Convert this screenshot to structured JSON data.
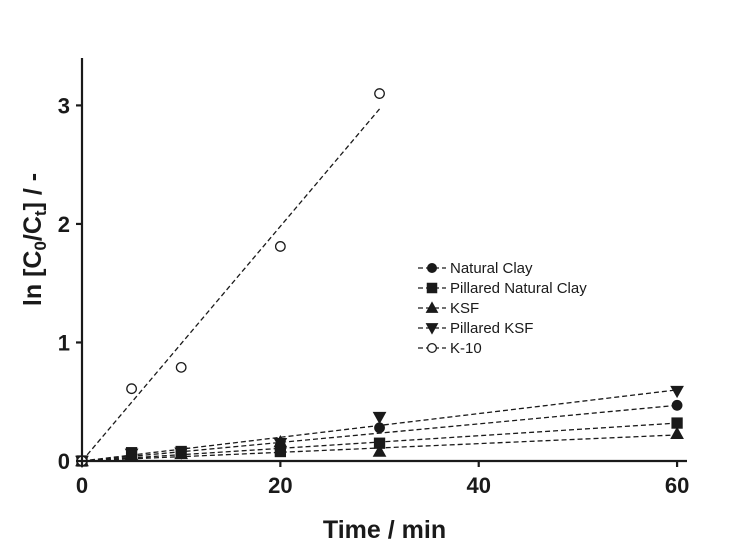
{
  "chart_data": {
    "type": "scatter",
    "title": "",
    "xlabel": "Time / min",
    "ylabel": {
      "main": "ln [C",
      "sub0": "0",
      "mid": "/C",
      "subt": "t",
      "tail": "] / -"
    },
    "xlim": [
      0,
      61
    ],
    "ylim": [
      0,
      3.4
    ],
    "xticks": [
      0,
      20,
      40,
      60
    ],
    "yticks": [
      0,
      1,
      2,
      3
    ],
    "legend_position": "center-right",
    "series": [
      {
        "name": "Natural Clay",
        "marker": "circle",
        "filled": true,
        "x": [
          0,
          5,
          10,
          20,
          30,
          60
        ],
        "y": [
          0,
          0.06,
          0.08,
          0.13,
          0.28,
          0.47
        ],
        "fit": {
          "x": [
            0,
            60
          ],
          "y": [
            0,
            0.47
          ]
        }
      },
      {
        "name": "Pillared Natural Clay",
        "marker": "square",
        "filled": true,
        "x": [
          0,
          5,
          10,
          20,
          30,
          60
        ],
        "y": [
          0,
          0.07,
          0.08,
          0.08,
          0.15,
          0.32
        ],
        "fit": {
          "x": [
            0,
            60
          ],
          "y": [
            0,
            0.32
          ]
        }
      },
      {
        "name": "KSF",
        "marker": "triangle-up",
        "filled": true,
        "x": [
          0,
          5,
          10,
          20,
          30,
          60
        ],
        "y": [
          0,
          0.05,
          0.06,
          0.16,
          0.08,
          0.23
        ],
        "fit": {
          "x": [
            0,
            60
          ],
          "y": [
            0,
            0.22
          ]
        }
      },
      {
        "name": "Pillared KSF",
        "marker": "triangle-down",
        "filled": true,
        "x": [
          0,
          5,
          10,
          20,
          30,
          60
        ],
        "y": [
          0,
          0.06,
          0.07,
          0.15,
          0.37,
          0.59
        ],
        "fit": {
          "x": [
            0,
            60
          ],
          "y": [
            0,
            0.6
          ]
        }
      },
      {
        "name": "K-10",
        "marker": "circle",
        "filled": false,
        "x": [
          0,
          5,
          10,
          20,
          30
        ],
        "y": [
          0,
          0.61,
          0.79,
          1.81,
          3.1
        ],
        "fit": {
          "x": [
            0,
            30
          ],
          "y": [
            0,
            2.97
          ]
        }
      }
    ]
  }
}
